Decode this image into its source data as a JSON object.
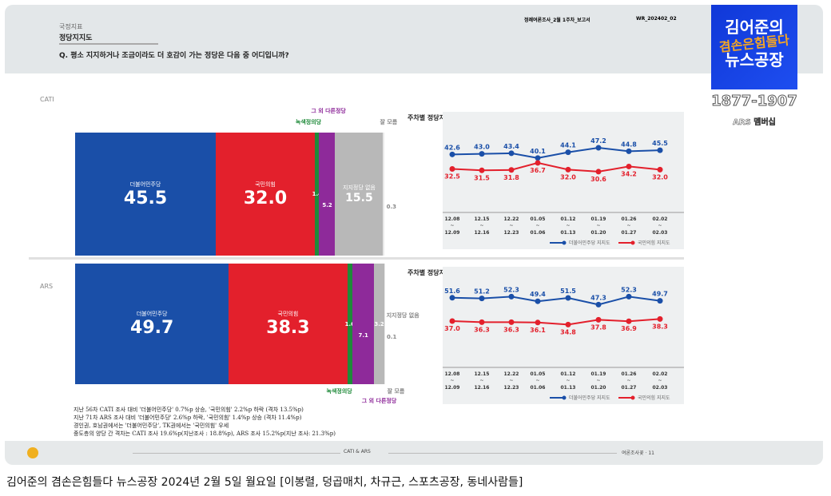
{
  "header": {
    "section": "국정지표",
    "title": "정당지지도",
    "question": "Q. 평소 지지하거나 조금이라도 더 호감이 가는 정당은 다음 중 어디입니까?",
    "report_name": "정례여론조사_2월 1주차_보고서",
    "report_code": "WR_202402_02"
  },
  "logo": {
    "line1": "김어준의",
    "line2": "겸손은힘들다",
    "line3": "뉴스공장",
    "phone": "1877-1907",
    "sub": "ARS 멤버십"
  },
  "colors": {
    "democratic": "#1a4fa8",
    "ppp": "#e3202c",
    "green": "#1f8a3a",
    "other": "#8e2a9a",
    "none": "#b8b8b8"
  },
  "cati": {
    "label": "CATI",
    "segments": [
      {
        "name": "더불어민주당",
        "value": 45.5
      },
      {
        "name": "국민의힘",
        "value": 32.0
      },
      {
        "name": "녹색정의당",
        "value": 1.4
      },
      {
        "name": "그 외 다른정당",
        "value": 5.2
      },
      {
        "name": "지지정당 없음",
        "value": 15.5
      },
      {
        "name": "잘 모름",
        "value": 0.3
      }
    ]
  },
  "ars": {
    "label": "ARS",
    "segments": [
      {
        "name": "더불어민주당",
        "value": 49.7
      },
      {
        "name": "국민의힘",
        "value": 38.3
      },
      {
        "name": "녹색정의당",
        "value": 1.6
      },
      {
        "name": "그 외 다른정당",
        "value": 7.1
      },
      {
        "name": "지지정당 없음",
        "value": 3.2
      },
      {
        "name": "잘 모름",
        "value": 0.1
      }
    ]
  },
  "chart_data": [
    {
      "type": "line",
      "title": "주차별 정당지지도",
      "x": [
        "12.08~12.09",
        "12.15~12.16",
        "12.22~12.23",
        "01.05~01.06",
        "01.12~01.13",
        "01.19~01.20",
        "01.26~01.27",
        "02.02~02.03"
      ],
      "series": [
        {
          "name": "더불어민주당 지지도",
          "values": [
            42.6,
            43.0,
            43.4,
            40.1,
            44.1,
            47.2,
            44.8,
            45.5
          ]
        },
        {
          "name": "국민의힘 지지도",
          "values": [
            32.5,
            31.5,
            31.8,
            36.7,
            32.0,
            30.6,
            34.2,
            32.0
          ]
        }
      ],
      "legend": "bottom-right"
    },
    {
      "type": "line",
      "title": "주차별 정당지지도",
      "x": [
        "12.08~12.09",
        "12.15~12.16",
        "12.22~12.23",
        "01.05~01.06",
        "01.12~01.13",
        "01.19~01.20",
        "01.26~01.27",
        "02.02~02.03"
      ],
      "series": [
        {
          "name": "더불어민주당 지지도",
          "values": [
            51.6,
            51.2,
            52.3,
            49.4,
            51.5,
            47.3,
            52.3,
            49.7
          ]
        },
        {
          "name": "국민의힘 지지도",
          "values": [
            37.0,
            36.3,
            36.3,
            36.1,
            34.8,
            37.8,
            36.9,
            38.3
          ]
        }
      ],
      "legend": "bottom-right"
    }
  ],
  "notes": [
    "지난 56차 CATI 조사 대비 '더불어민주당' 0.7%p 상승, '국민의힘' 2.2%p 하락 (격차 13.5%p)",
    "지난 71차 ARS 조사 대비 '더불어민주당' 2.6%p 하락, '국민의힘' 1.4%p 상승 (격차 11.4%p)",
    "경인권, 호남권에서는 '더불어민주당', TK권에서는 '국민의힘' 우세",
    "중도층의 양당 간 격차는 CATI 조사 19.6%p(지난조사 : 18.8%p), ARS 조사 15.2%p(지난 조사: 21.3%p)"
  ],
  "footer": {
    "center": "CATI & ARS",
    "right": "여론조사꽃 · 11"
  },
  "caption": "김어준의 겸손은힘들다 뉴스공장 2024년 2월 5일 월요일 [이봉렬, 덩곱매치, 차규근, 스포츠공장, 동네사람들]"
}
